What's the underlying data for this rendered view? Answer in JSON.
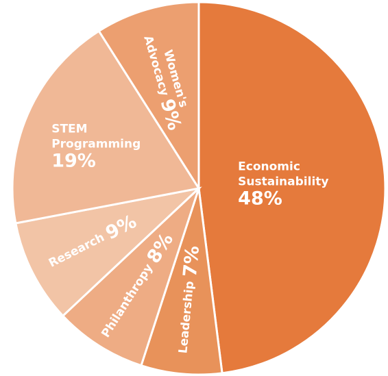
{
  "chart_data": {
    "type": "pie",
    "title": "",
    "slices": [
      {
        "label_lines": [
          "Economic",
          "Sustainability"
        ],
        "value": 48,
        "value_label": "48%",
        "color": "#e57a3c"
      },
      {
        "label_lines": [
          "Leadership"
        ],
        "value": 7,
        "value_label": "7%",
        "color": "#e8925a"
      },
      {
        "label_lines": [
          "Philanthropy"
        ],
        "value": 8,
        "value_label": "8%",
        "color": "#eeac84"
      },
      {
        "label_lines": [
          "Research"
        ],
        "value": 9,
        "value_label": "9%",
        "color": "#f2c4a6"
      },
      {
        "label_lines": [
          "STEM",
          "Programming"
        ],
        "value": 19,
        "value_label": "19%",
        "color": "#f0b896"
      },
      {
        "label_lines": [
          "Women's",
          "Advocacy"
        ],
        "value": 9,
        "value_label": "9%",
        "color": "#ec9f70"
      }
    ]
  }
}
